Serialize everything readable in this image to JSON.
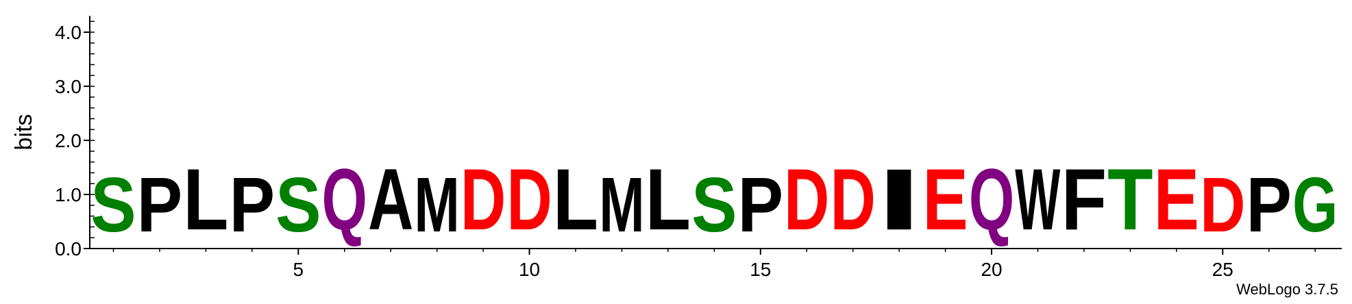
{
  "chart_data": {
    "type": "sequence-logo",
    "ylabel": "bits",
    "ylim": [
      0,
      4.3
    ],
    "yticks": [
      {
        "value": 0,
        "label": "0.0"
      },
      {
        "value": 1,
        "label": "1.0"
      },
      {
        "value": 2,
        "label": "2.0"
      },
      {
        "value": 3,
        "label": "3.0"
      },
      {
        "value": 4,
        "label": "4.0"
      }
    ],
    "xticks": [
      {
        "value": 5,
        "label": "5"
      },
      {
        "value": 10,
        "label": "10"
      },
      {
        "value": 15,
        "label": "15"
      },
      {
        "value": 20,
        "label": "20"
      },
      {
        "value": 25,
        "label": "25"
      }
    ],
    "positions": [
      1,
      2,
      3,
      4,
      5,
      6,
      7,
      8,
      9,
      10,
      11,
      12,
      13,
      14,
      15,
      16,
      17,
      18,
      19,
      20,
      21,
      22,
      23,
      24,
      25,
      26,
      27
    ],
    "residues": [
      {
        "pos": 1,
        "letter": "S",
        "bits": 1.6,
        "color": "#008000"
      },
      {
        "pos": 2,
        "letter": "P",
        "bits": 1.6,
        "color": "#000000"
      },
      {
        "pos": 3,
        "letter": "L",
        "bits": 1.8,
        "color": "#000000"
      },
      {
        "pos": 4,
        "letter": "P",
        "bits": 1.6,
        "color": "#000000"
      },
      {
        "pos": 5,
        "letter": "S",
        "bits": 1.6,
        "color": "#008000"
      },
      {
        "pos": 6,
        "letter": "Q",
        "bits": 1.8,
        "color": "#800080"
      },
      {
        "pos": 7,
        "letter": "A",
        "bits": 1.8,
        "color": "#000000"
      },
      {
        "pos": 8,
        "letter": "M",
        "bits": 1.6,
        "color": "#000000"
      },
      {
        "pos": 9,
        "letter": "D",
        "bits": 1.8,
        "color": "#ff0000"
      },
      {
        "pos": 10,
        "letter": "D",
        "bits": 1.8,
        "color": "#ff0000"
      },
      {
        "pos": 11,
        "letter": "L",
        "bits": 1.8,
        "color": "#000000"
      },
      {
        "pos": 12,
        "letter": "M",
        "bits": 1.6,
        "color": "#000000"
      },
      {
        "pos": 13,
        "letter": "L",
        "bits": 1.8,
        "color": "#000000"
      },
      {
        "pos": 14,
        "letter": "S",
        "bits": 1.6,
        "color": "#008000"
      },
      {
        "pos": 15,
        "letter": "P",
        "bits": 1.6,
        "color": "#000000"
      },
      {
        "pos": 16,
        "letter": "D",
        "bits": 1.8,
        "color": "#ff0000"
      },
      {
        "pos": 17,
        "letter": "D",
        "bits": 1.8,
        "color": "#ff0000"
      },
      {
        "pos": 18,
        "letter": "I",
        "bits": 1.8,
        "color": "#000000"
      },
      {
        "pos": 19,
        "letter": "E",
        "bits": 1.8,
        "color": "#ff0000"
      },
      {
        "pos": 20,
        "letter": "Q",
        "bits": 1.8,
        "color": "#800080"
      },
      {
        "pos": 21,
        "letter": "W",
        "bits": 1.8,
        "color": "#000000"
      },
      {
        "pos": 22,
        "letter": "F",
        "bits": 1.8,
        "color": "#000000"
      },
      {
        "pos": 23,
        "letter": "T",
        "bits": 1.8,
        "color": "#008000"
      },
      {
        "pos": 24,
        "letter": "E",
        "bits": 1.8,
        "color": "#ff0000"
      },
      {
        "pos": 25,
        "letter": "D",
        "bits": 1.6,
        "color": "#ff0000"
      },
      {
        "pos": 26,
        "letter": "P",
        "bits": 1.6,
        "color": "#000000"
      },
      {
        "pos": 27,
        "letter": "G",
        "bits": 1.6,
        "color": "#008000"
      }
    ]
  },
  "credit": "WebLogo 3.7.5"
}
